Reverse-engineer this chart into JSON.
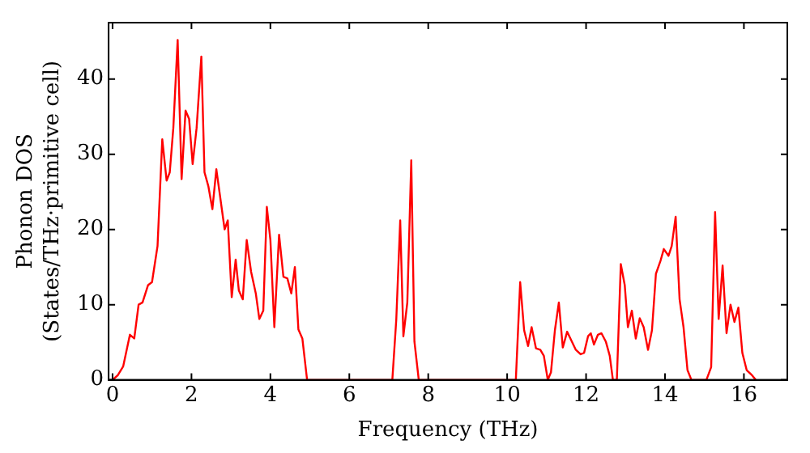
{
  "chart_data": {
    "type": "line",
    "xlabel": "Frequency (THz)",
    "ylabel": "Phonon DOS\n(States/THz·primitive cell)",
    "xlim": [
      -0.1,
      17.1
    ],
    "ylim": [
      0,
      47.5
    ],
    "xticks": [
      0,
      2,
      4,
      6,
      8,
      10,
      12,
      14,
      16
    ],
    "yticks": [
      0,
      10,
      20,
      30,
      40
    ],
    "grid": false,
    "legend": false,
    "marker": "none",
    "line_style": "solid",
    "series": [
      {
        "color": "#ff0000",
        "x": [
          0,
          0.13,
          0.27,
          0.44,
          0.55,
          0.66,
          0.76,
          0.9,
          1.0,
          1.14,
          1.26,
          1.37,
          1.45,
          1.54,
          1.65,
          1.75,
          1.85,
          1.94,
          2.03,
          2.13,
          2.25,
          2.33,
          2.43,
          2.53,
          2.63,
          2.72,
          2.84,
          2.92,
          3.02,
          3.12,
          3.2,
          3.3,
          3.4,
          3.51,
          3.63,
          3.72,
          3.82,
          3.91,
          4.0,
          4.1,
          4.22,
          4.33,
          4.43,
          4.53,
          4.62,
          4.71,
          4.81,
          4.93,
          7.09,
          7.19,
          7.29,
          7.37,
          7.47,
          7.57,
          7.65,
          7.76,
          10.22,
          10.33,
          10.43,
          10.53,
          10.62,
          10.73,
          10.84,
          10.93,
          11.03,
          11.11,
          11.21,
          11.31,
          11.41,
          11.52,
          11.63,
          11.74,
          11.86,
          11.95,
          12.05,
          12.12,
          12.2,
          12.3,
          12.39,
          12.5,
          12.6,
          12.68,
          12.78,
          12.88,
          12.98,
          13.06,
          13.16,
          13.26,
          13.36,
          13.46,
          13.57,
          13.67,
          13.77,
          13.89,
          13.97,
          14.09,
          14.17,
          14.27,
          14.37,
          14.47,
          14.57,
          14.67,
          15.05,
          15.17,
          15.27,
          15.36,
          15.46,
          15.56,
          15.66,
          15.76,
          15.86,
          15.96,
          16.07,
          16.19,
          16.3
        ],
        "values": [
          0,
          0.6,
          1.8,
          6,
          5.5,
          10,
          10.3,
          12.6,
          13,
          17.8,
          32,
          26.5,
          27.6,
          33.5,
          45.2,
          26.7,
          35.8,
          34.7,
          28.7,
          33.5,
          43,
          27.6,
          25.7,
          22.7,
          28,
          24.6,
          20,
          21.2,
          11,
          16,
          11.9,
          10.7,
          18.6,
          14.4,
          11.5,
          8.1,
          9.2,
          23,
          18.6,
          7,
          19.3,
          13.7,
          13.5,
          11.5,
          15,
          6.7,
          5.5,
          0,
          0,
          8,
          21.2,
          5.8,
          10.3,
          29.2,
          5.1,
          0,
          0,
          13,
          6.6,
          4.5,
          7,
          4.2,
          4,
          3.2,
          0,
          1,
          6.6,
          10.3,
          4.3,
          6.4,
          5.2,
          4,
          3.4,
          3.6,
          5.8,
          6.2,
          4.7,
          6,
          6.2,
          5.1,
          3.2,
          0,
          0,
          15.4,
          12.6,
          7,
          9.2,
          5.5,
          8.2,
          7,
          4,
          6.6,
          14.1,
          15.9,
          17.4,
          16.5,
          17.8,
          21.7,
          10.7,
          7,
          1.3,
          0,
          0,
          1.7,
          22.3,
          8.1,
          15.2,
          6.2,
          10,
          7.7,
          9.6,
          3.6,
          1.3,
          0.7,
          0
        ]
      }
    ]
  }
}
